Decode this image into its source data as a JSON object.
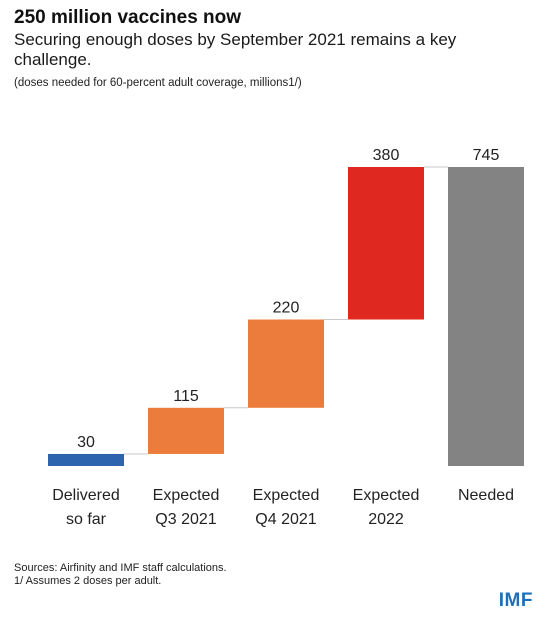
{
  "header": {
    "title": "250 million vaccines now",
    "subtitle": "Securing enough doses by September 2021 remains a key challenge.",
    "note": "(doses needed for 60-percent adult coverage, millions1/)"
  },
  "footer": {
    "sources": "Sources: Airfinity and IMF staff calculations.",
    "footnote": "1/ Assumes 2 doses per adult.",
    "logo": "IMF"
  },
  "colors": {
    "delivered": "#2e63ad",
    "expected": "#ec7c3b",
    "expected_2022": "#df2920",
    "needed": "#838383",
    "connector": "#c8c8c8"
  },
  "chart_data": {
    "type": "waterfall",
    "categories": [
      [
        "Delivered",
        "so far"
      ],
      [
        "Expected",
        "Q3 2021"
      ],
      [
        "Expected",
        "Q4 2021"
      ],
      [
        "Expected",
        "2022"
      ],
      [
        "Needed"
      ]
    ],
    "values": [
      30,
      115,
      220,
      380,
      745
    ],
    "data_labels": [
      "30",
      "115",
      "220",
      "380",
      "745"
    ],
    "steps": [
      {
        "start": 0,
        "end": 30,
        "color_key": "delivered"
      },
      {
        "start": 30,
        "end": 145,
        "color_key": "expected"
      },
      {
        "start": 145,
        "end": 365,
        "color_key": "expected"
      },
      {
        "start": 365,
        "end": 745,
        "color_key": "expected_2022"
      },
      {
        "start": 0,
        "end": 745,
        "color_key": "needed"
      }
    ],
    "ylim": [
      0,
      745
    ],
    "grid": false,
    "legend": "none"
  }
}
